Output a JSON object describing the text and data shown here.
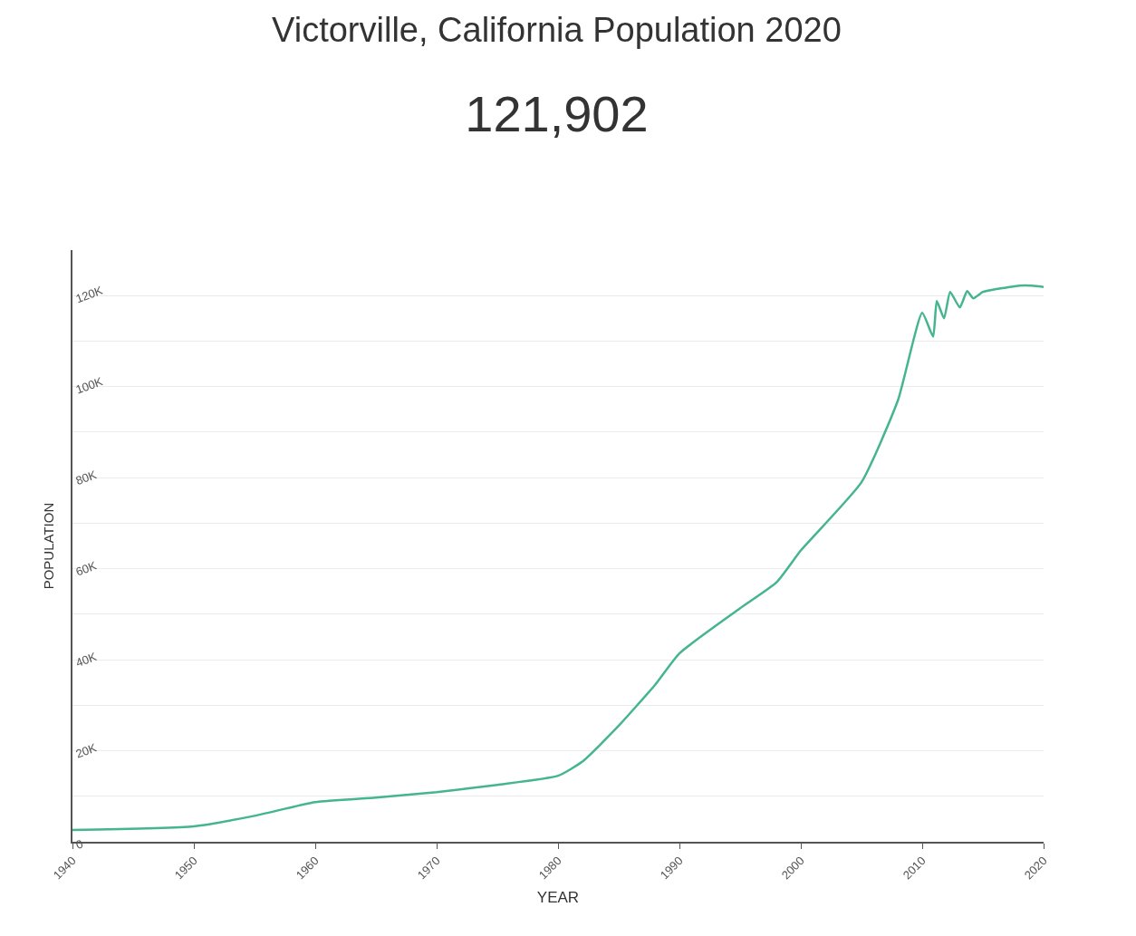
{
  "chart_data": {
    "type": "line",
    "title": "Victorville, California Population 2020",
    "subtitle": "121,902",
    "xlabel": "YEAR",
    "ylabel": "POPULATION",
    "x": [
      1940,
      1950,
      1955,
      1960,
      1965,
      1970,
      1975,
      1980,
      1982,
      1985,
      1988,
      1990,
      1995,
      1998,
      2000,
      2005,
      2008,
      2010,
      2010.9,
      2011.2,
      2011.8,
      2012.3,
      2013.1,
      2013.7,
      2014.2,
      2015,
      2016,
      2017,
      2018,
      2019,
      2019.8,
      2020
    ],
    "series": [
      {
        "color": "#45b58e",
        "values": [
          2600,
          3400,
          5700,
          8700,
          9700,
          10900,
          12500,
          14500,
          17600,
          25500,
          34500,
          41400,
          51300,
          57000,
          64000,
          79000,
          97000,
          116200,
          111000,
          118800,
          115000,
          120800,
          117400,
          121000,
          119400,
          120800,
          121400,
          121800,
          122200,
          122200,
          122000,
          121900
        ]
      }
    ],
    "xlim": [
      1940,
      2020
    ],
    "xticks": [
      1940,
      1950,
      1960,
      1970,
      1980,
      1990,
      2000,
      2010,
      2020
    ],
    "ylim": [
      0,
      130000
    ],
    "yticks": [
      0,
      {
        "value": 10000,
        "label": null
      },
      {
        "value": 20000,
        "label": "20K"
      },
      {
        "value": 30000,
        "label": null
      },
      {
        "value": 40000,
        "label": "40K"
      },
      {
        "value": 50000,
        "label": null
      },
      {
        "value": 60000,
        "label": "60K"
      },
      {
        "value": 70000,
        "label": null
      },
      {
        "value": 80000,
        "label": "80K"
      },
      {
        "value": 90000,
        "label": null
      },
      {
        "value": 100000,
        "label": "100K"
      },
      {
        "value": 110000,
        "label": null
      },
      {
        "value": 120000,
        "label": "120K"
      }
    ],
    "grid": "y",
    "marker": "none",
    "line_style": "solid"
  }
}
